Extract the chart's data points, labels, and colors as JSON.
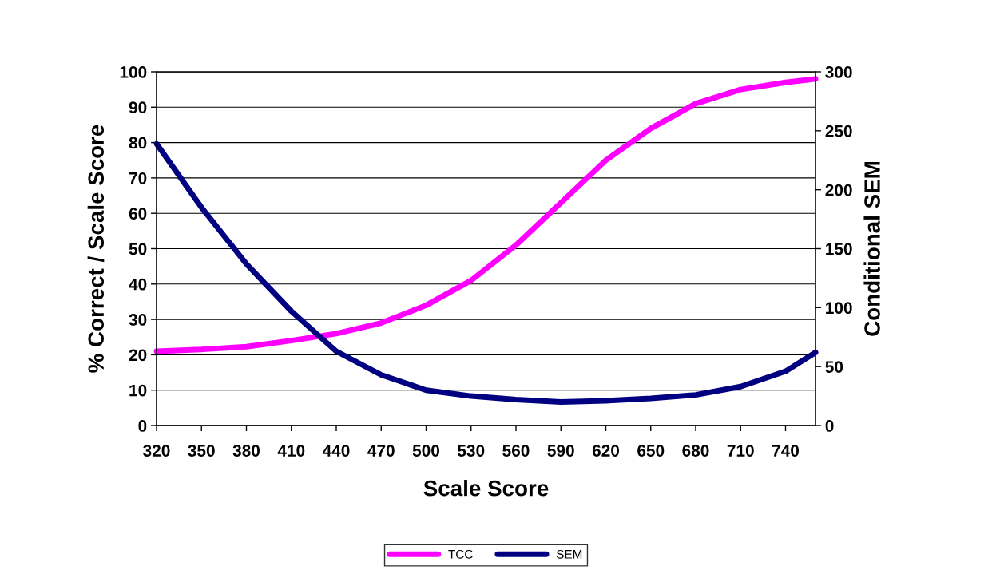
{
  "chart_data": {
    "type": "line",
    "xlabel": "Scale Score",
    "ylabel": "% Correct / Scale Score",
    "y2label": "Conditional SEM",
    "x": [
      320,
      350,
      380,
      410,
      440,
      470,
      500,
      530,
      560,
      590,
      620,
      650,
      680,
      710,
      740,
      760
    ],
    "series": [
      {
        "name": "TCC",
        "color": "#ff00ff",
        "values": [
          21,
          21.5,
          22.3,
          24,
          26,
          29,
          34,
          41,
          51,
          63,
          75,
          84,
          91,
          95,
          97,
          98
        ]
      },
      {
        "name": "SEM",
        "color": "#000080",
        "axis": "y2",
        "values": [
          239,
          185,
          137,
          97,
          63,
          43,
          30,
          25,
          22,
          20,
          21,
          23,
          26,
          33,
          46,
          62
        ]
      }
    ],
    "xlim": [
      320,
      760
    ],
    "xticks": [
      320,
      350,
      380,
      410,
      440,
      470,
      500,
      530,
      560,
      590,
      620,
      650,
      680,
      710,
      740
    ],
    "ylim": [
      0,
      100
    ],
    "yticks": [
      0,
      10,
      20,
      30,
      40,
      50,
      60,
      70,
      80,
      90,
      100
    ],
    "y2lim": [
      0,
      300
    ],
    "y2ticks": [
      0,
      50,
      100,
      150,
      200,
      250,
      300
    ],
    "grid": "y",
    "legend": "bottom",
    "marker": "none",
    "line_style": "solid"
  }
}
